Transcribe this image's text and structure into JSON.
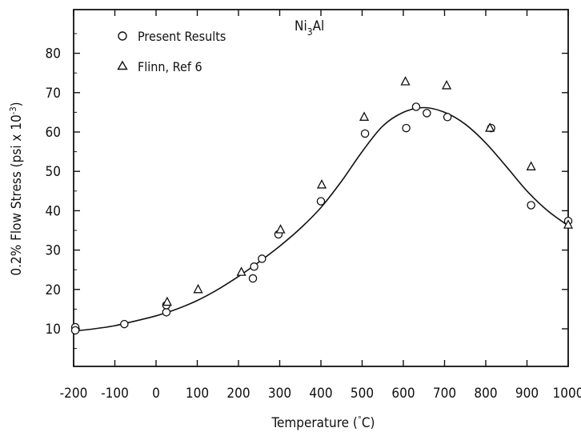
{
  "chart_data": {
    "type": "scatter",
    "title": "",
    "annotation": "Ni3Al",
    "xlabel": "Temperature (°C)",
    "ylabel": "0.2% Flow Stress (psi x 10-3)",
    "xlim": [
      -200,
      1000
    ],
    "ylim": [
      0,
      90
    ],
    "xticks": [
      -200,
      -100,
      0,
      100,
      200,
      300,
      400,
      500,
      600,
      700,
      800,
      900,
      1000
    ],
    "yticks": [
      10,
      20,
      30,
      40,
      50,
      60,
      70,
      80
    ],
    "grid": false,
    "legend_position": "top-left",
    "series": [
      {
        "name": "Present Results",
        "marker": "circle",
        "x": [
          -196,
          -196,
          -77,
          25,
          25,
          235,
          238,
          257,
          297,
          400,
          507,
          607,
          631,
          657,
          707,
          813,
          910,
          1000
        ],
        "y": [
          10.4,
          9.6,
          11.2,
          14.2,
          16.0,
          22.8,
          25.8,
          27.8,
          34.0,
          42.4,
          59.6,
          61.0,
          66.4,
          64.8,
          63.8,
          61.0,
          41.4,
          37.4
        ]
      },
      {
        "name": "Flinn, Ref 6",
        "marker": "triangle",
        "x": [
          27,
          102,
          207,
          302,
          402,
          505,
          605,
          705,
          810,
          910,
          1000
        ],
        "y": [
          16.8,
          20.0,
          24.4,
          35.2,
          46.6,
          63.8,
          72.8,
          71.8,
          61.0,
          51.2,
          36.4
        ]
      },
      {
        "name": "",
        "marker": "none",
        "style": "fitted-curve",
        "x": [
          -200,
          -150,
          -100,
          -50,
          0,
          50,
          100,
          150,
          200,
          250,
          300,
          350,
          400,
          450,
          500,
          550,
          600,
          650,
          700,
          750,
          800,
          850,
          900,
          950,
          1000
        ],
        "y": [
          9.4,
          10.0,
          10.8,
          12.0,
          13.3,
          15.0,
          17.2,
          20.0,
          23.3,
          27.0,
          31.0,
          35.5,
          40.8,
          47.5,
          55.0,
          61.5,
          65.0,
          66.2,
          65.0,
          62.0,
          57.2,
          51.2,
          45.0,
          40.0,
          36.2
        ]
      }
    ]
  }
}
